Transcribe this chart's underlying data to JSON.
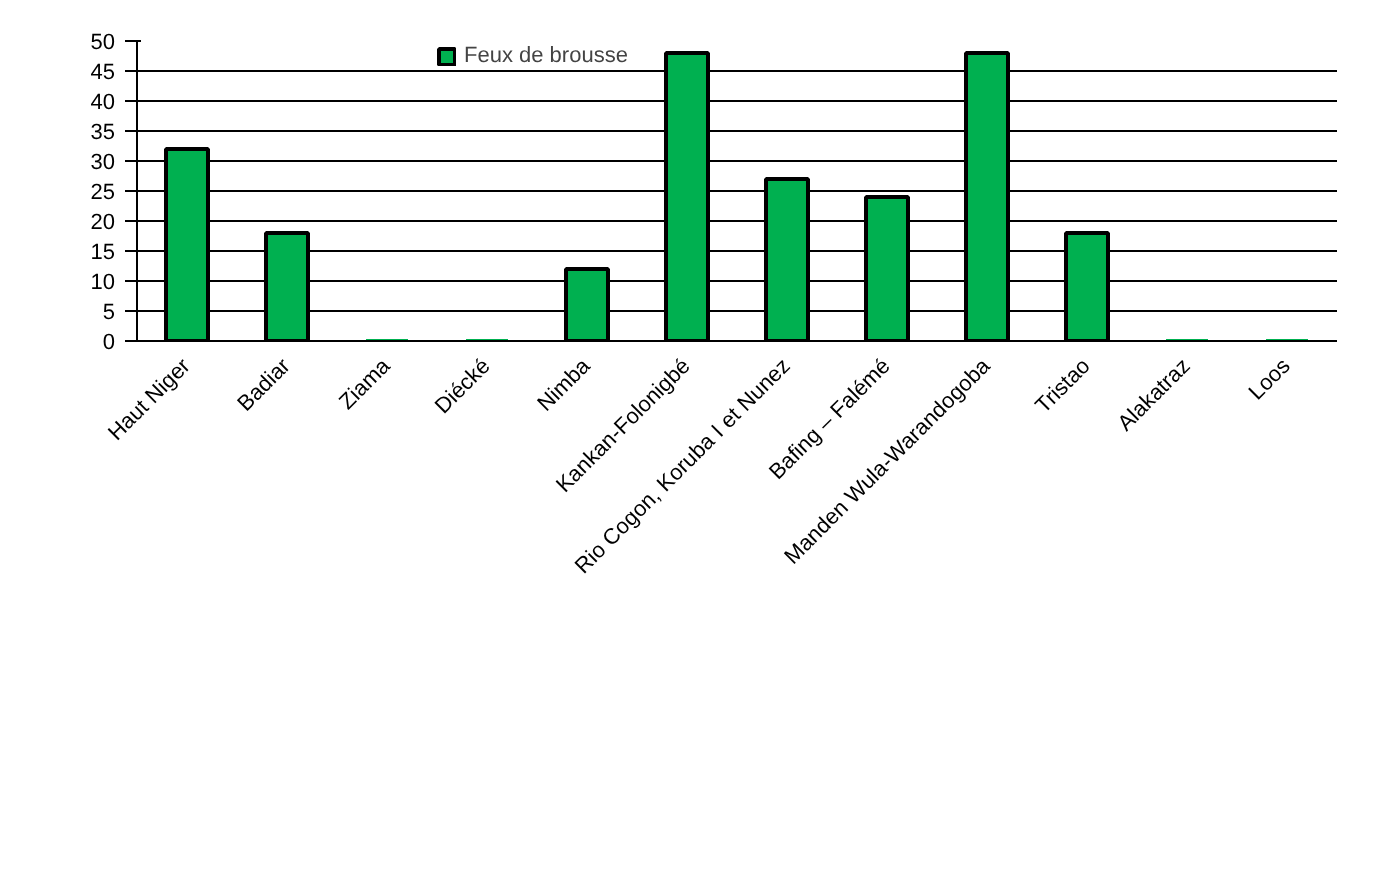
{
  "chart_data": {
    "type": "bar",
    "categories": [
      "Haut Niger",
      "Badiar",
      "Ziama",
      "Diécké",
      "Nimba",
      "Kankan-Folonigbé",
      "Rio Cogon, Koruba I et Nunez",
      "Bafing – Falémé",
      "Manden Wula-Warandogoba",
      "Tristao",
      "Alakatraz",
      "Loos"
    ],
    "series": [
      {
        "name": "Feux de brousse",
        "color": "#00b050",
        "values": [
          32,
          18,
          0,
          0,
          12,
          48,
          27,
          24,
          48,
          18,
          0,
          0
        ]
      }
    ],
    "ylim": [
      0,
      50
    ],
    "yticks": [
      0,
      5,
      10,
      15,
      20,
      25,
      30,
      35,
      40,
      45,
      50
    ],
    "grid": "y",
    "legend": "top"
  }
}
